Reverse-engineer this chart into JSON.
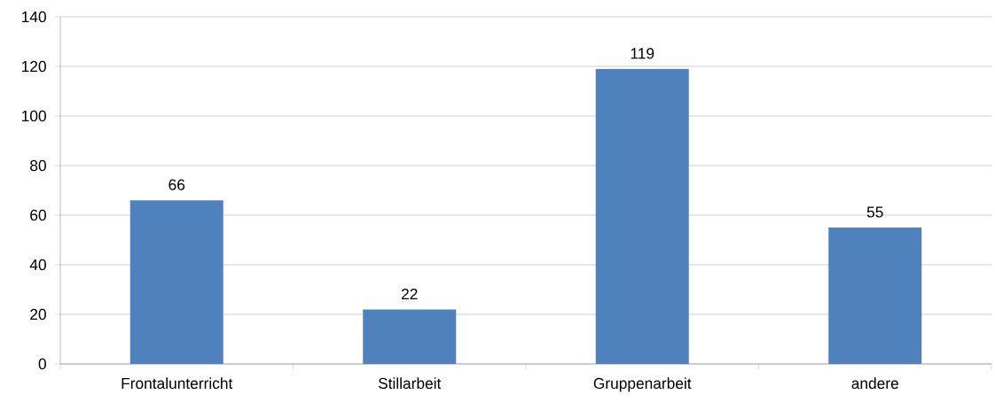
{
  "chart_data": {
    "type": "bar",
    "categories": [
      "Frontalunterricht",
      "Stillarbeit",
      "Gruppenarbeit",
      "andere"
    ],
    "values": [
      66,
      22,
      119,
      55
    ],
    "color": "#4f81bd",
    "ylim": [
      0,
      140
    ],
    "yticks": [
      0,
      20,
      40,
      60,
      80,
      100,
      120,
      140
    ],
    "grid": "y",
    "data_labels": true
  }
}
